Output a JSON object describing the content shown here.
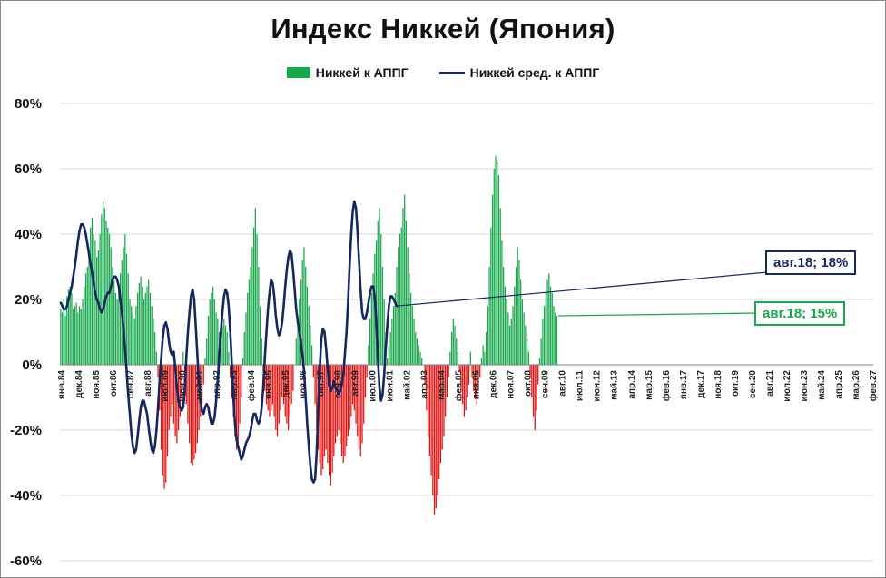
{
  "chart_data": {
    "type": "bar",
    "title": "Индекс Никкей (Япония)",
    "xlabel": "",
    "ylabel": "",
    "ylim": [
      -0.6,
      0.8
    ],
    "yticks": [
      0.8,
      0.6,
      0.4,
      0.2,
      0,
      -0.2,
      -0.4,
      -0.6
    ],
    "ytick_labels": [
      "80%",
      "60%",
      "40%",
      "20%",
      "0%",
      "-20%",
      "-40%",
      "-60%"
    ],
    "grid": true,
    "legend_position": "top-center",
    "x_start": "1984-01",
    "x_end": "2027-02",
    "xtick_labels": [
      "янв.84",
      "дек.84",
      "ноя.85",
      "окт.86",
      "сен.87",
      "авг.88",
      "июл.89",
      "июн.90",
      "май.91",
      "апр.92",
      "мар.93",
      "фев.94",
      "янв.95",
      "дек.95",
      "ноя.96",
      "окт.97",
      "сен.98",
      "авг.99",
      "июл.00",
      "июн.01",
      "май.02",
      "апр.03",
      "мар.04",
      "фев.05",
      "янв.06",
      "дек.06",
      "ноя.07",
      "окт.08",
      "сен.09",
      "авг.10",
      "июл.11",
      "июн.12",
      "май.13",
      "апр.14",
      "мар.15",
      "фев.16",
      "янв.17",
      "дек.17",
      "ноя.18",
      "окт.19",
      "сен.20",
      "авг.21",
      "июл.22",
      "июн.23",
      "май.24",
      "апр.25",
      "мар.26",
      "фев.27"
    ],
    "series": [
      {
        "name": "Никкей к АППГ",
        "kind": "bar",
        "color": "#18a84c",
        "negative_color": "#e0110f",
        "monthly_values": [
          0.17,
          0.16,
          0.2,
          0.15,
          0.21,
          0.23,
          0.24,
          0.22,
          0.17,
          0.18,
          0.19,
          0.16,
          0.18,
          0.17,
          0.2,
          0.24,
          0.28,
          0.3,
          0.36,
          0.42,
          0.45,
          0.4,
          0.38,
          0.33,
          0.35,
          0.4,
          0.46,
          0.5,
          0.48,
          0.44,
          0.42,
          0.4,
          0.36,
          0.3,
          0.26,
          0.22,
          0.2,
          0.24,
          0.28,
          0.32,
          0.36,
          0.4,
          0.34,
          0.28,
          0.2,
          0.18,
          0.16,
          0.14,
          0.18,
          0.22,
          0.25,
          0.27,
          0.24,
          0.2,
          0.22,
          0.24,
          0.26,
          0.22,
          0.18,
          0.14,
          0.1,
          0.04,
          -0.04,
          -0.14,
          -0.26,
          -0.34,
          -0.38,
          -0.36,
          -0.28,
          -0.2,
          -0.16,
          -0.12,
          -0.18,
          -0.22,
          -0.24,
          -0.2,
          -0.16,
          -0.1,
          0.04,
          -0.06,
          -0.12,
          -0.18,
          -0.24,
          -0.3,
          -0.31,
          -0.29,
          -0.27,
          -0.24,
          -0.2,
          -0.16,
          -0.12,
          -0.06,
          0.02,
          0.08,
          0.15,
          0.2,
          0.22,
          0.24,
          0.2,
          0.16,
          0.14,
          0.1,
          0.08,
          0.12,
          0.14,
          0.12,
          0.1,
          0.04,
          -0.04,
          -0.1,
          -0.16,
          -0.22,
          -0.26,
          -0.24,
          -0.18,
          -0.1,
          0.02,
          0.1,
          0.16,
          0.22,
          0.26,
          0.3,
          0.36,
          0.42,
          0.48,
          0.4,
          0.3,
          0.18,
          0.08,
          -0.02,
          -0.08,
          -0.12,
          -0.14,
          -0.16,
          -0.14,
          -0.12,
          -0.16,
          -0.2,
          -0.22,
          -0.18,
          -0.14,
          -0.1,
          -0.12,
          -0.16,
          -0.18,
          -0.2,
          -0.16,
          -0.12,
          -0.08,
          0.0,
          0.08,
          0.14,
          0.2,
          0.26,
          0.32,
          0.36,
          0.3,
          0.24,
          0.18,
          0.12,
          0.06,
          -0.04,
          -0.12,
          -0.2,
          -0.26,
          -0.3,
          -0.34,
          -0.32,
          -0.28,
          -0.26,
          -0.3,
          -0.34,
          -0.37,
          -0.33,
          -0.28,
          -0.24,
          -0.22,
          -0.2,
          -0.24,
          -0.28,
          -0.3,
          -0.28,
          -0.25,
          -0.22,
          -0.2,
          -0.16,
          -0.12,
          -0.14,
          -0.18,
          -0.22,
          -0.26,
          -0.28,
          -0.24,
          -0.18,
          -0.1,
          -0.04,
          0.06,
          0.14,
          0.22,
          0.28,
          0.34,
          0.38,
          0.44,
          0.48,
          0.4,
          0.3,
          0.2,
          0.1,
          0.02,
          0.06,
          0.1,
          0.14,
          0.18,
          0.22,
          0.3,
          0.36,
          0.4,
          0.42,
          0.48,
          0.52,
          0.44,
          0.36,
          0.28,
          0.22,
          0.18,
          0.14,
          0.1,
          0.08,
          0.06,
          0.04,
          0.02,
          0.0,
          -0.06,
          -0.14,
          -0.22,
          -0.28,
          -0.34,
          -0.4,
          -0.46,
          -0.44,
          -0.4,
          -0.35,
          -0.3,
          -0.26,
          -0.22,
          -0.16,
          -0.1,
          -0.04,
          0.04,
          0.1,
          0.14,
          0.12,
          0.08,
          0.04,
          -0.02,
          -0.08,
          -0.12,
          -0.16,
          -0.14,
          -0.1,
          -0.06,
          0.04,
          -0.04,
          -0.08,
          -0.1,
          -0.12,
          -0.08,
          -0.04,
          0.02,
          0.06,
          0.04,
          0.1,
          0.18,
          0.3,
          0.42,
          0.52,
          0.6,
          0.64,
          0.62,
          0.58,
          0.48,
          0.38,
          0.3,
          0.24,
          0.2,
          0.16,
          0.12,
          0.14,
          0.18,
          0.24,
          0.3,
          0.36,
          0.32,
          0.26,
          0.2,
          0.16,
          0.12,
          0.08,
          0.04,
          -0.04,
          -0.1,
          -0.16,
          -0.2,
          -0.14,
          -0.06,
          0.02,
          0.08,
          0.14,
          0.18,
          0.22,
          0.26,
          0.28,
          0.24,
          0.22,
          0.18,
          0.16,
          0.15
        ]
      },
      {
        "name": "Никкей сред. к АППГ",
        "kind": "line",
        "color": "#14275e",
        "monthly_values": [
          0.19,
          0.18,
          0.17,
          0.17,
          0.18,
          0.2,
          0.22,
          0.24,
          0.27,
          0.3,
          0.34,
          0.38,
          0.41,
          0.43,
          0.43,
          0.42,
          0.4,
          0.37,
          0.34,
          0.31,
          0.28,
          0.25,
          0.22,
          0.2,
          0.19,
          0.17,
          0.16,
          0.17,
          0.19,
          0.21,
          0.22,
          0.22,
          0.24,
          0.26,
          0.27,
          0.27,
          0.26,
          0.24,
          0.2,
          0.16,
          0.11,
          0.05,
          -0.02,
          -0.09,
          -0.15,
          -0.21,
          -0.25,
          -0.27,
          -0.26,
          -0.22,
          -0.17,
          -0.13,
          -0.11,
          -0.11,
          -0.13,
          -0.15,
          -0.19,
          -0.23,
          -0.26,
          -0.27,
          -0.25,
          -0.2,
          -0.13,
          -0.05,
          0.02,
          0.08,
          0.12,
          0.13,
          0.11,
          0.07,
          0.04,
          0.03,
          0.04,
          -0.01,
          -0.07,
          -0.11,
          -0.13,
          -0.14,
          -0.13,
          -0.08,
          0.02,
          0.1,
          0.16,
          0.21,
          0.23,
          0.2,
          0.12,
          0.03,
          -0.05,
          -0.11,
          -0.14,
          -0.15,
          -0.13,
          -0.12,
          -0.13,
          -0.16,
          -0.18,
          -0.18,
          -0.16,
          -0.11,
          -0.05,
          0.03,
          0.1,
          0.16,
          0.21,
          0.23,
          0.22,
          0.18,
          0.1,
          0.0,
          -0.1,
          -0.18,
          -0.23,
          -0.25,
          -0.27,
          -0.29,
          -0.28,
          -0.26,
          -0.24,
          -0.23,
          -0.22,
          -0.2,
          -0.17,
          -0.15,
          -0.15,
          -0.17,
          -0.18,
          -0.17,
          -0.13,
          -0.07,
          0.02,
          0.1,
          0.17,
          0.22,
          0.26,
          0.25,
          0.21,
          0.15,
          0.11,
          0.09,
          0.1,
          0.13,
          0.18,
          0.24,
          0.29,
          0.33,
          0.35,
          0.34,
          0.29,
          0.23,
          0.17,
          0.13,
          0.1,
          0.07,
          0.03,
          -0.02,
          -0.1,
          -0.18,
          -0.25,
          -0.31,
          -0.35,
          -0.36,
          -0.35,
          -0.27,
          -0.14,
          -0.01,
          0.08,
          0.11,
          0.1,
          0.05,
          -0.01,
          -0.06,
          -0.08,
          -0.07,
          -0.05,
          -0.07,
          -0.08,
          -0.09,
          -0.08,
          -0.06,
          -0.03,
          0.03,
          0.1,
          0.19,
          0.3,
          0.4,
          0.47,
          0.5,
          0.48,
          0.41,
          0.32,
          0.23,
          0.16,
          0.14,
          0.14,
          0.16,
          0.19,
          0.22,
          0.24,
          0.24,
          0.21,
          0.13,
          0.02,
          -0.07,
          -0.11,
          -0.09,
          -0.03,
          0.05,
          0.12,
          0.18,
          0.21,
          0.21,
          0.2,
          0.19,
          0.18
        ]
      }
    ],
    "annotations": [
      {
        "text": "авг.18; 18%",
        "series": "Никкей сред. к АППГ",
        "value": 0.18,
        "color": "#14275e"
      },
      {
        "text": "авг.18; 15%",
        "series": "Никкей к АППГ",
        "value": 0.15,
        "color": "#18a84c"
      }
    ]
  }
}
